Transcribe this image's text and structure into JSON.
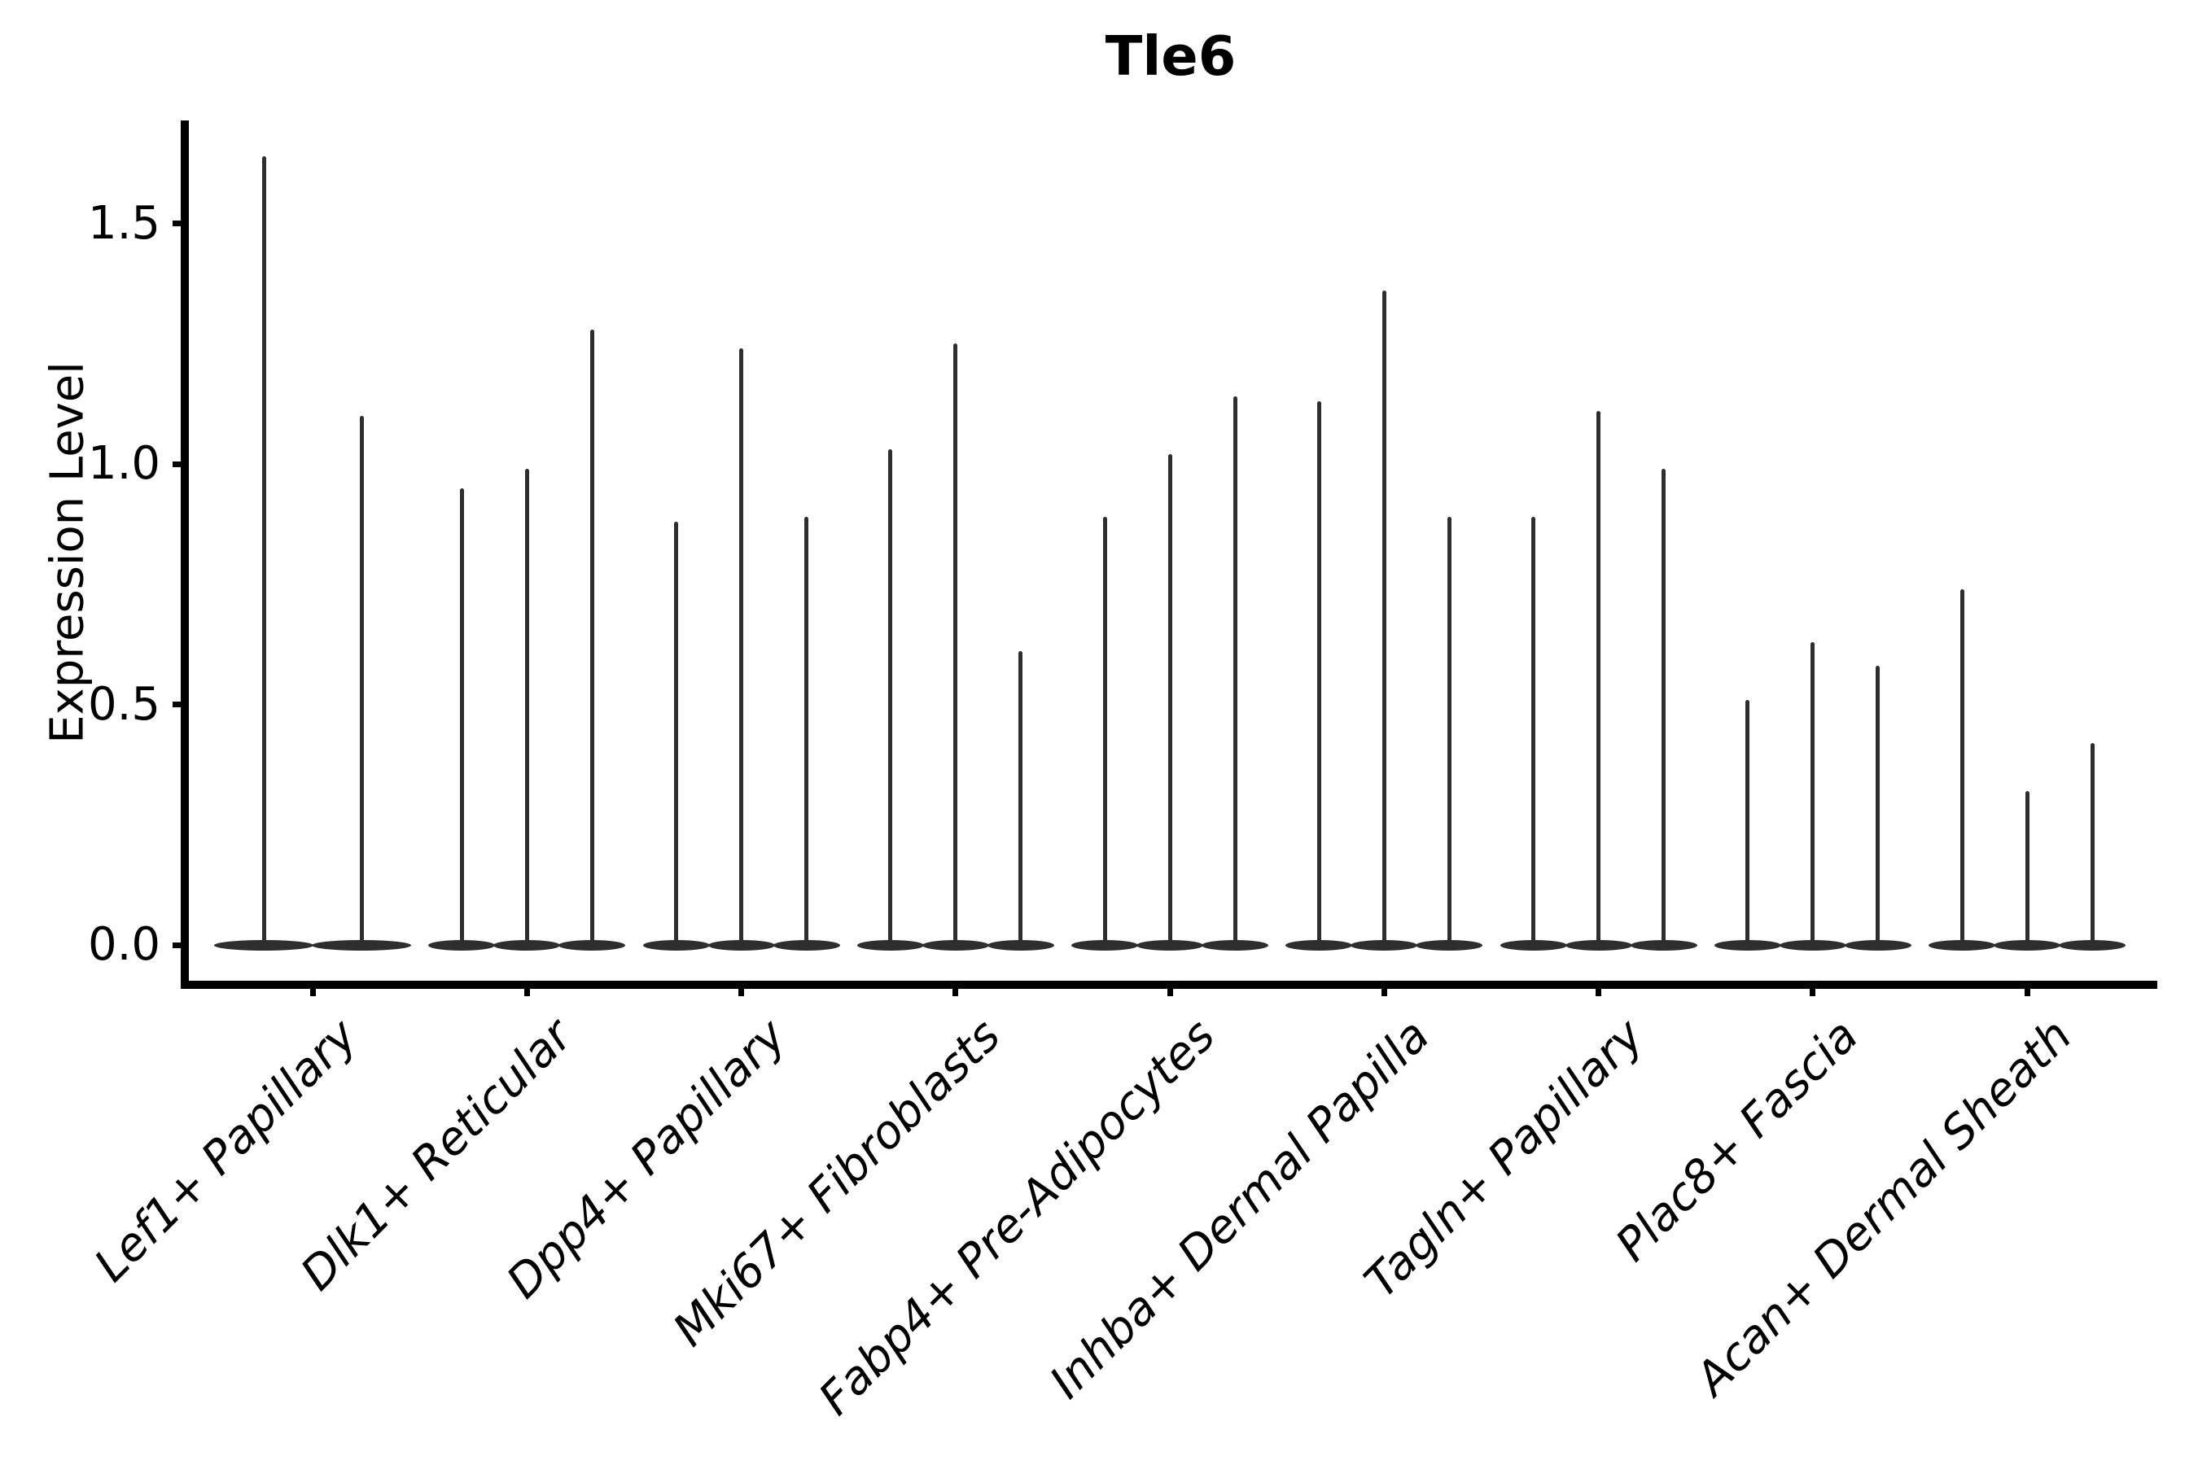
{
  "chart_data": {
    "type": "violin",
    "title": "Tle6",
    "xlabel": "",
    "ylabel": "Expression Level",
    "yticks": [
      0.0,
      0.5,
      1.0,
      1.5
    ],
    "ytick_labels": [
      "0.0",
      "0.5",
      "1.0",
      "1.5"
    ],
    "ylim": [
      -0.08,
      1.71
    ],
    "grid": false,
    "legend": "none",
    "description": "Seurat-style stacked violin plot of gene expression; violins are extremely thin spikes rising from a flattened base at 0 (most cells express 0), drawn in dark charcoal on white, x labels italic rotated 45 degrees",
    "categories": [
      "Lef1+ Papillary",
      "Dlk1+ Reticular",
      "Dpp4+ Papillary",
      "Mki67+ Fibroblasts",
      "Fabp4+ Pre-Adipocytes",
      "Inhba+ Dermal Papilla",
      "Tagln+ Papillary",
      "Plac8+ Fascia",
      "Acan+ Dermal Sheath"
    ],
    "series": [
      {
        "category": "Lef1+ Papillary",
        "violin_maxima": [
          1.64,
          1.1
        ]
      },
      {
        "category": "Dlk1+ Reticular",
        "violin_maxima": [
          0.95,
          0.99,
          1.28
        ]
      },
      {
        "category": "Dpp4+ Papillary",
        "violin_maxima": [
          0.88,
          1.24,
          0.89
        ]
      },
      {
        "category": "Mki67+ Fibroblasts",
        "violin_maxima": [
          1.03,
          1.25,
          0.61
        ]
      },
      {
        "category": "Fabp4+ Pre-Adipocytes",
        "violin_maxima": [
          0.89,
          1.02,
          1.14
        ]
      },
      {
        "category": "Inhba+ Dermal Papilla",
        "violin_maxima": [
          1.13,
          1.36,
          0.89
        ]
      },
      {
        "category": "Tagln+ Papillary",
        "violin_maxima": [
          0.89,
          1.11,
          0.99
        ]
      },
      {
        "category": "Plac8+ Fascia",
        "violin_maxima": [
          0.51,
          0.63,
          0.58
        ]
      },
      {
        "category": "Acan+ Dermal Sheath",
        "violin_maxima": [
          0.74,
          0.32,
          0.42
        ]
      }
    ],
    "violin_baseline_value": 0.0,
    "colors": {
      "violin": "#2e2e2e",
      "axis": "#000000",
      "text": "#000000",
      "background": "#ffffff"
    }
  }
}
